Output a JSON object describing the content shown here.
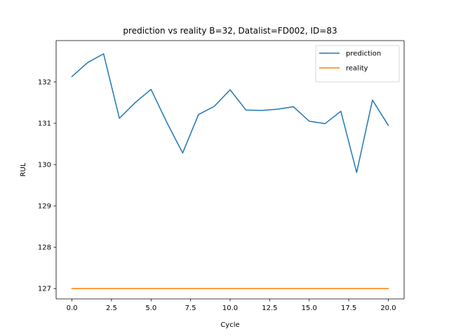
{
  "chart_data": {
    "type": "line",
    "title": "prediction vs reality B=32, Datalist=FD002, ID=83",
    "xlabel": "Cycle",
    "ylabel": "RUL",
    "xlim": [
      -1.0,
      21.0
    ],
    "ylim": [
      126.75,
      133.0
    ],
    "xticks": [
      0.0,
      2.5,
      5.0,
      7.5,
      10.0,
      12.5,
      15.0,
      17.5,
      20.0
    ],
    "xtick_labels": [
      "0.0",
      "2.5",
      "5.0",
      "7.5",
      "10.0",
      "12.5",
      "15.0",
      "17.5",
      "20.0"
    ],
    "yticks": [
      127,
      128,
      129,
      130,
      131,
      132
    ],
    "ytick_labels": [
      "127",
      "128",
      "129",
      "130",
      "131",
      "132"
    ],
    "grid": false,
    "legend_position": "top-right",
    "x": [
      0,
      1,
      2,
      3,
      4,
      5,
      6,
      7,
      8,
      9,
      10,
      11,
      12,
      13,
      14,
      15,
      16,
      17,
      18,
      19,
      20
    ],
    "series": [
      {
        "name": "prediction",
        "color": "#1f77b4",
        "values": [
          132.13,
          132.47,
          132.68,
          131.12,
          131.5,
          131.82,
          131.02,
          130.28,
          131.21,
          131.41,
          131.81,
          131.32,
          131.31,
          131.34,
          131.4,
          131.05,
          130.99,
          131.29,
          129.81,
          131.56,
          130.95
        ]
      },
      {
        "name": "reality",
        "color": "#ff7f0e",
        "values": [
          127,
          127,
          127,
          127,
          127,
          127,
          127,
          127,
          127,
          127,
          127,
          127,
          127,
          127,
          127,
          127,
          127,
          127,
          127,
          127,
          127
        ]
      }
    ]
  }
}
